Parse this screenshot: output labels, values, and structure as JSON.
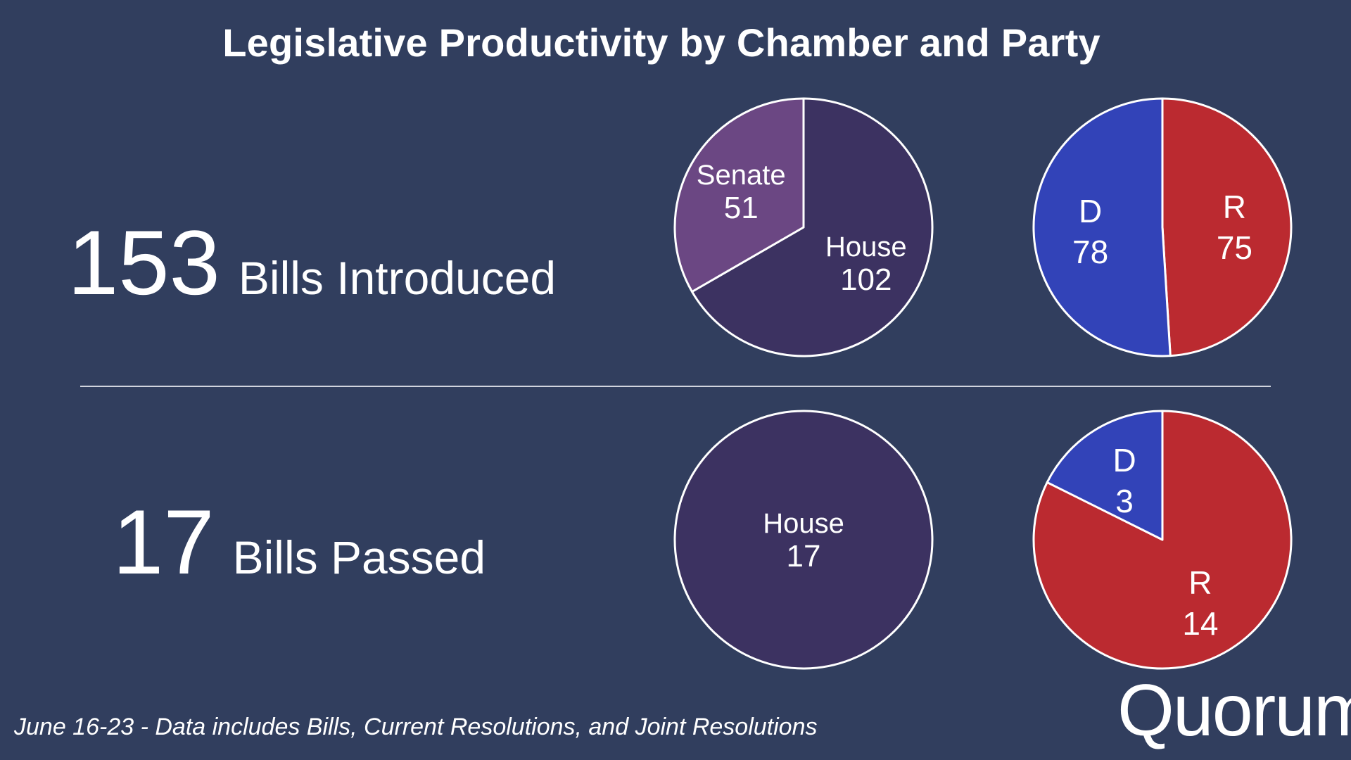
{
  "title": "Legislative Productivity by Chamber and Party",
  "introduced": {
    "count": "153",
    "label": "Bills Introduced"
  },
  "passed": {
    "count": "17",
    "label": "Bills Passed"
  },
  "footnote": "June 16-23 - Data includes Bills, Current Resolutions, and Joint Resolutions",
  "logo": "Quorum",
  "colors": {
    "background": "#313e5e",
    "house": "#3c3261",
    "senate": "#6b4783",
    "democrat": "#3243b8",
    "republican": "#bb2a30",
    "stroke": "#ffffff"
  },
  "chart_data": [
    {
      "type": "pie",
      "id": "chamber-introduced",
      "labels": [
        "House",
        "Senate"
      ],
      "values": [
        102,
        51
      ]
    },
    {
      "type": "pie",
      "id": "party-introduced",
      "labels": [
        "R",
        "D"
      ],
      "values": [
        75,
        78
      ]
    },
    {
      "type": "pie",
      "id": "chamber-passed",
      "labels": [
        "House"
      ],
      "values": [
        17
      ]
    },
    {
      "type": "pie",
      "id": "party-passed",
      "labels": [
        "R",
        "D"
      ],
      "values": [
        14,
        3
      ]
    }
  ]
}
